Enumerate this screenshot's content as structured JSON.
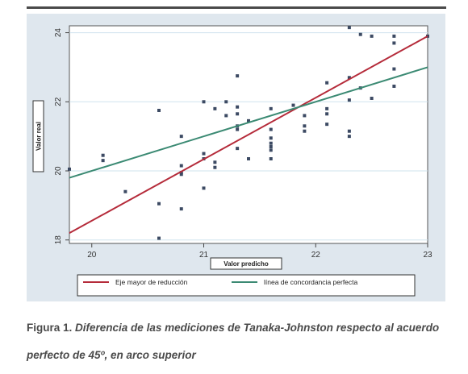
{
  "caption": {
    "label": "Figura 1.",
    "text_line_1": "Diferencia de las mediciones de Tanaka-Johnston respecto al acuerdo",
    "text_line_2": "perfecto de 45º, en arco superior"
  },
  "chart_data": {
    "type": "scatter",
    "title": "",
    "xlabel": "Valor predicho",
    "ylabel": "Valor real",
    "xlim": [
      19.8,
      23.0
    ],
    "ylim": [
      17.9,
      24.2
    ],
    "x_ticks": [
      20,
      21,
      22,
      23
    ],
    "y_ticks": [
      18,
      20,
      22,
      24
    ],
    "x_tick_labels": [
      "20",
      "21",
      "22",
      "23"
    ],
    "y_tick_labels": [
      "18",
      "20",
      "22",
      "24"
    ],
    "grid": "horizontal",
    "legend_position": "bottom",
    "colors": {
      "points": "#3c4a63",
      "red_line": "#b52b3a",
      "green_line": "#3b8a73",
      "panel_background": "#dfe7ee",
      "plot_background": "#ffffff",
      "gridline": "#cfe3ee"
    },
    "points": [
      [
        19.8,
        20.05
      ],
      [
        20.1,
        20.45
      ],
      [
        20.1,
        20.3
      ],
      [
        20.3,
        19.4
      ],
      [
        20.6,
        21.75
      ],
      [
        20.6,
        19.05
      ],
      [
        20.6,
        18.05
      ],
      [
        20.8,
        21.0
      ],
      [
        20.8,
        20.15
      ],
      [
        20.8,
        19.95
      ],
      [
        20.8,
        19.9
      ],
      [
        20.8,
        18.9
      ],
      [
        21.0,
        22.0
      ],
      [
        21.0,
        20.5
      ],
      [
        21.0,
        20.35
      ],
      [
        21.0,
        19.5
      ],
      [
        21.1,
        21.8
      ],
      [
        21.1,
        20.25
      ],
      [
        21.1,
        20.1
      ],
      [
        21.2,
        21.6
      ],
      [
        21.2,
        22.0
      ],
      [
        21.3,
        22.75
      ],
      [
        21.3,
        21.85
      ],
      [
        21.3,
        21.65
      ],
      [
        21.3,
        21.3
      ],
      [
        21.3,
        21.2
      ],
      [
        21.3,
        20.65
      ],
      [
        21.4,
        21.45
      ],
      [
        21.4,
        20.35
      ],
      [
        21.6,
        21.8
      ],
      [
        21.6,
        21.2
      ],
      [
        21.6,
        20.95
      ],
      [
        21.6,
        20.8
      ],
      [
        21.6,
        20.7
      ],
      [
        21.6,
        20.6
      ],
      [
        21.6,
        20.35
      ],
      [
        21.8,
        21.9
      ],
      [
        21.9,
        21.6
      ],
      [
        21.9,
        21.3
      ],
      [
        21.9,
        21.15
      ],
      [
        22.1,
        22.55
      ],
      [
        22.1,
        21.8
      ],
      [
        22.1,
        21.65
      ],
      [
        22.1,
        21.35
      ],
      [
        22.3,
        24.15
      ],
      [
        22.3,
        22.7
      ],
      [
        22.3,
        22.05
      ],
      [
        22.3,
        21.15
      ],
      [
        22.3,
        21.0
      ],
      [
        22.4,
        23.95
      ],
      [
        22.4,
        22.4
      ],
      [
        22.5,
        23.9
      ],
      [
        22.5,
        22.1
      ],
      [
        22.7,
        23.9
      ],
      [
        22.7,
        23.7
      ],
      [
        22.7,
        22.95
      ],
      [
        22.7,
        22.45
      ],
      [
        23.0,
        23.9
      ]
    ],
    "series": [
      {
        "name": "Eje mayor de reducción",
        "type": "line",
        "x": [
          19.8,
          23.0
        ],
        "y": [
          18.2,
          23.9
        ]
      },
      {
        "name": "línea de concordancia perfecta",
        "type": "line",
        "x": [
          19.8,
          23.0
        ],
        "y": [
          19.8,
          23.0
        ]
      }
    ]
  }
}
